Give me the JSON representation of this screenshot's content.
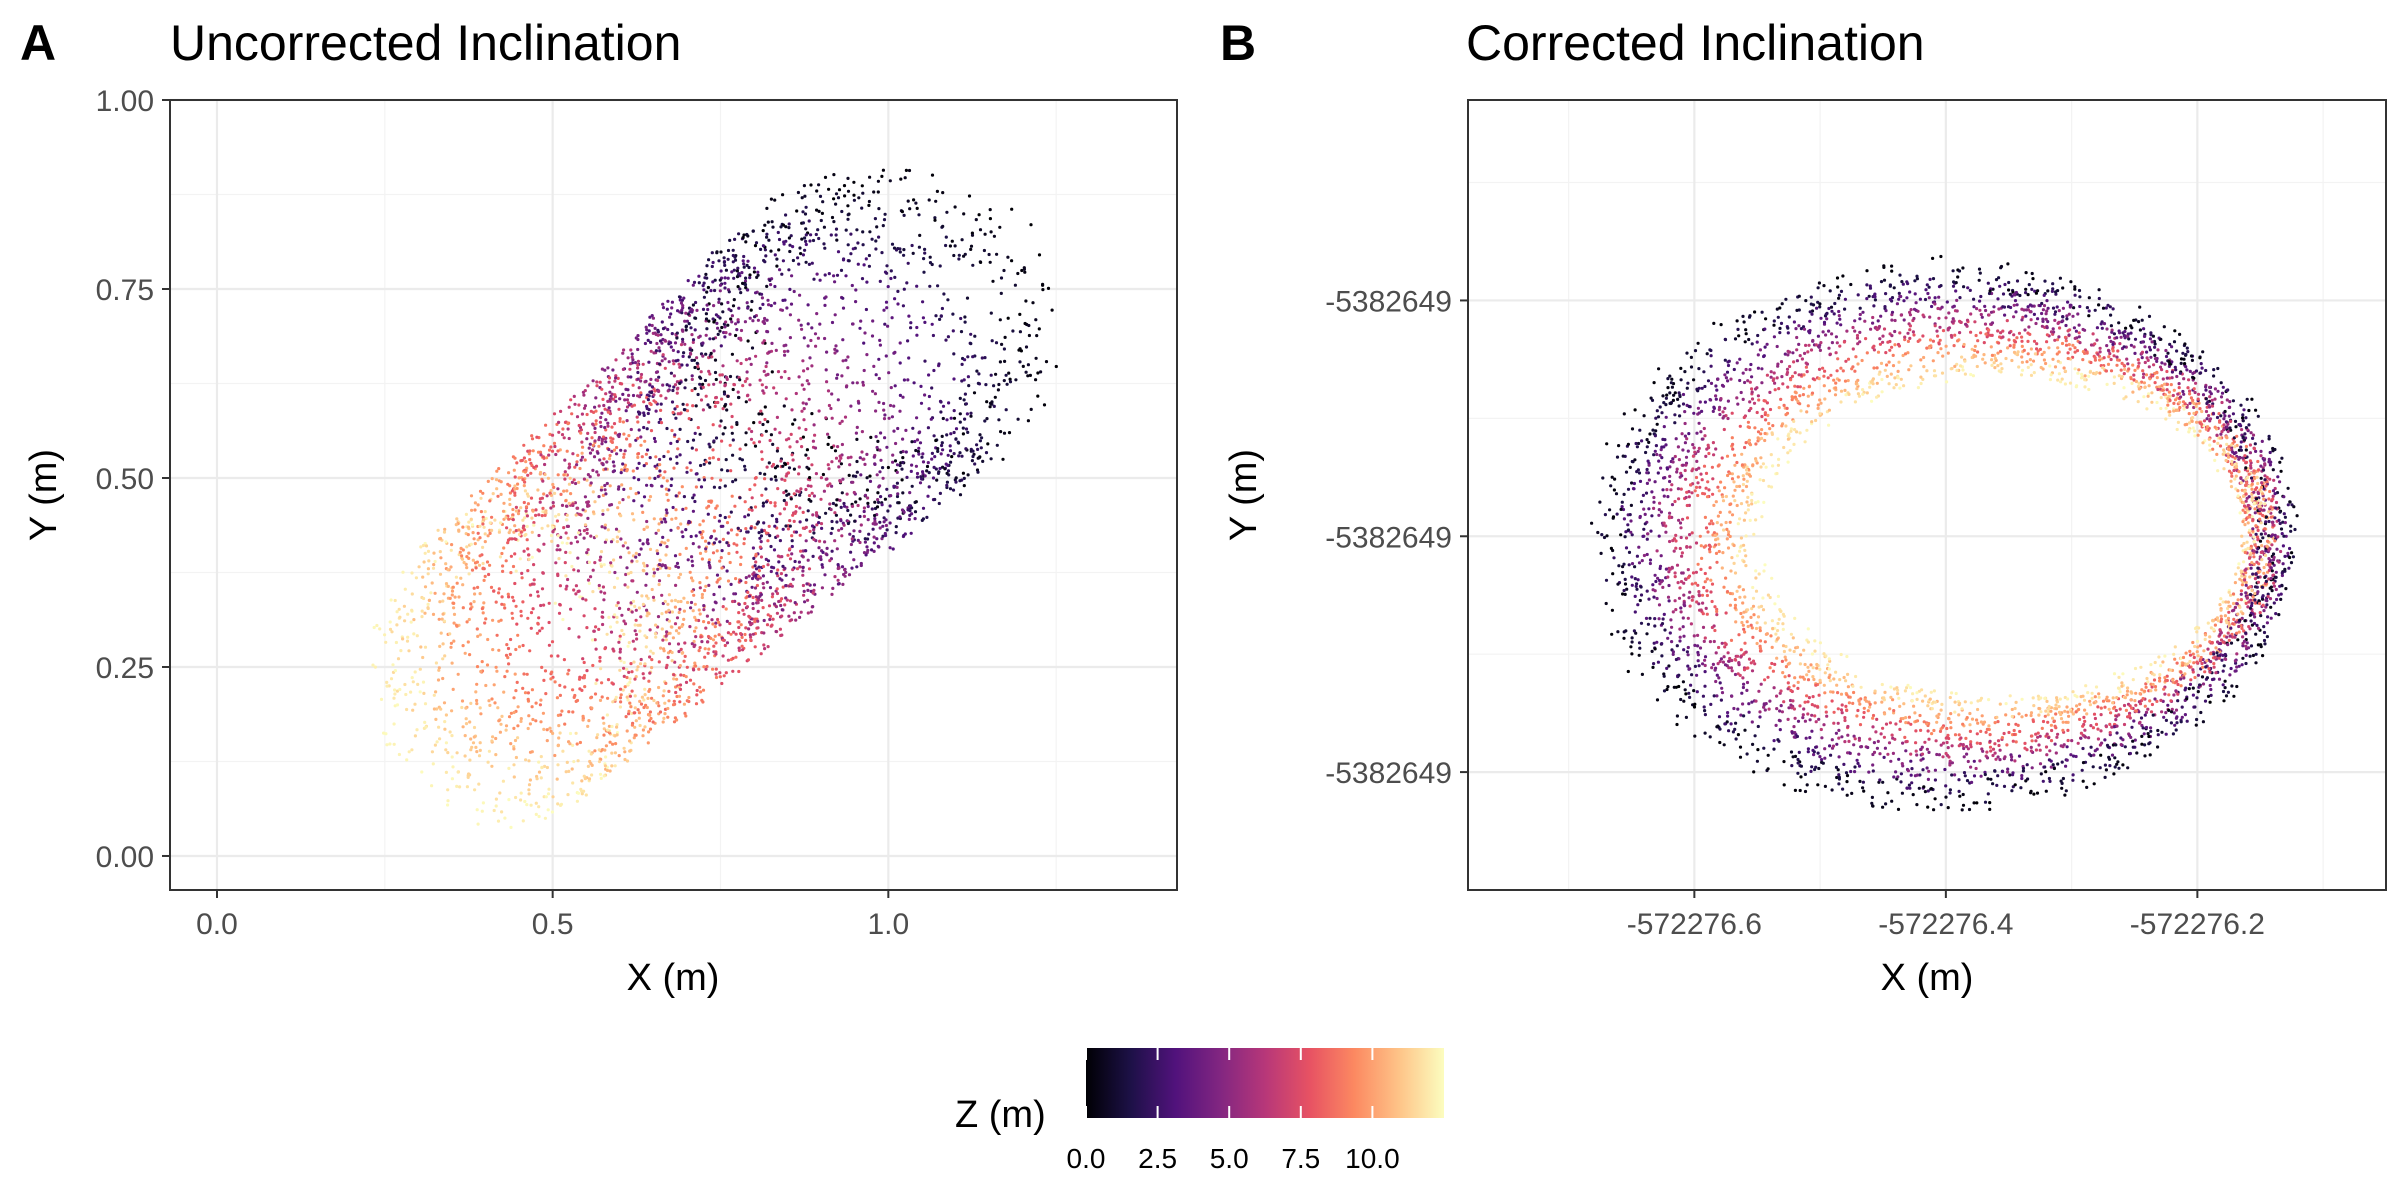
{
  "colors": {
    "scale": "magma",
    "stops": [
      "#000004",
      "#1d1147",
      "#51127c",
      "#822681",
      "#b73779",
      "#e75263",
      "#fc8961",
      "#fec488",
      "#fcfdbf"
    ]
  },
  "legend": {
    "title": "Z (m)",
    "ticks": [
      "0.0",
      "2.5",
      "5.0",
      "7.5",
      "10.0"
    ],
    "tick_values": [
      0,
      2.5,
      5,
      7.5,
      10
    ],
    "range": [
      0,
      12.5
    ]
  },
  "chart_data": [
    {
      "tag": "A",
      "type": "scatter",
      "title": "Uncorrected Inclination",
      "xlabel": "X (m)",
      "ylabel": "Y (m)",
      "xlim": [
        -0.07,
        1.43
      ],
      "ylim": [
        -0.045,
        1.0
      ],
      "xticks": [
        {
          "v": 0.0,
          "label": "0.0"
        },
        {
          "v": 0.5,
          "label": "0.5"
        },
        {
          "v": 1.0,
          "label": "1.0"
        }
      ],
      "yticks": [
        {
          "v": 0.0,
          "label": "0.00"
        },
        {
          "v": 0.25,
          "label": "0.25"
        },
        {
          "v": 0.5,
          "label": "0.50"
        },
        {
          "v": 0.75,
          "label": "0.75"
        },
        {
          "v": 1.0,
          "label": "1.00"
        }
      ],
      "grid": true,
      "series": [
        {
          "z_range": [
            0,
            12.5
          ],
          "center_start": [
            1.0,
            0.7
          ],
          "center_end": [
            0.42,
            0.24
          ],
          "radius_x": [
            0.27,
            0.2
          ],
          "radius_y": [
            0.23,
            0.21
          ]
        }
      ]
    },
    {
      "tag": "B",
      "type": "scatter",
      "title": "Corrected Inclination",
      "xlabel": "X (m)",
      "ylabel": "Y (m)",
      "xlim": [
        -572276.78,
        -572276.05
      ],
      "ylim": [
        -5382649.6,
        -5382648.26
      ],
      "xticks": [
        {
          "v": -572276.6,
          "label": "-572276.6"
        },
        {
          "v": -572276.4,
          "label": "-572276.4"
        },
        {
          "v": -572276.2,
          "label": "-572276.2"
        }
      ],
      "yticks": [
        {
          "v": -5382648.6,
          "label": "-5382649"
        },
        {
          "v": -5382649.0,
          "label": "-5382649"
        },
        {
          "v": -5382649.4,
          "label": "-5382649"
        }
      ],
      "grid": true,
      "series": [
        {
          "z_range": [
            0,
            12.5
          ],
          "center": [
            -572276.38,
            -5382649.0
          ],
          "radius_x": [
            0.27,
            0.2
          ],
          "radius_y": [
            0.45,
            0.28
          ]
        }
      ]
    }
  ]
}
